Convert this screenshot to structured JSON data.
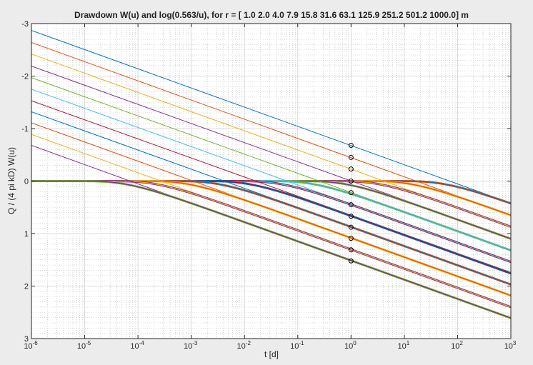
{
  "chart_data": {
    "type": "line",
    "title": "Drawdown W(u) and log(0.563/u), for r = [ 1.0 2.0 4.0 7.9 15.8 31.6 63.1 125.9 251.2 501.2 1000.0] m",
    "xlabel": "t [d]",
    "ylabel": "Q / (4 pi kD) W(u)",
    "xscale": "log",
    "xlim": [
      1e-06,
      1000
    ],
    "ylim": [
      -3,
      3
    ],
    "yreversed": true,
    "grid": true,
    "minor_grid": true,
    "x_ticks": [
      {
        "base": "10",
        "exp": "-6"
      },
      {
        "base": "10",
        "exp": "-5"
      },
      {
        "base": "10",
        "exp": "-4"
      },
      {
        "base": "10",
        "exp": "-3"
      },
      {
        "base": "10",
        "exp": "-2"
      },
      {
        "base": "10",
        "exp": "-1"
      },
      {
        "base": "10",
        "exp": "0"
      },
      {
        "base": "10",
        "exp": "1"
      },
      {
        "base": "10",
        "exp": "2"
      },
      {
        "base": "10",
        "exp": "3"
      }
    ],
    "y_ticks": [
      "-3",
      "-2",
      "-1",
      "0",
      "1",
      "2",
      "3"
    ],
    "r_values": [
      1.0,
      2.0,
      4.0,
      7.9,
      15.8,
      31.6,
      63.1,
      125.9,
      251.2,
      501.2,
      1000.0
    ],
    "colors": [
      "#0072BD",
      "#D95319",
      "#EDB120",
      "#7E2F8E",
      "#77AC30",
      "#4DBEEE",
      "#A2142F"
    ],
    "marker_x": 1,
    "marker_y": [
      -0.68,
      -0.45,
      -0.23,
      0.0,
      0.22,
      0.45,
      0.67,
      0.88,
      1.09,
      1.31,
      1.52
    ],
    "series": [
      {
        "label": "log(0.563/u)",
        "line_at_t1e-6": [
          -2.87,
          -2.64,
          -2.42,
          -2.19,
          -1.97,
          -1.75,
          -1.53,
          -1.32,
          -1.11,
          -0.89,
          -0.68
        ],
        "line_at_t1e3": [
          0.42,
          0.65,
          0.87,
          1.09,
          1.31,
          1.53,
          1.74,
          1.96,
          2.18,
          2.4,
          2.62
        ]
      },
      {
        "label": "W(u)",
        "asymptote_y": 0,
        "line_at_t1e3": [
          0.42,
          0.65,
          0.87,
          1.09,
          1.31,
          1.53,
          1.74,
          1.96,
          2.18,
          2.4,
          2.62
        ]
      }
    ]
  }
}
